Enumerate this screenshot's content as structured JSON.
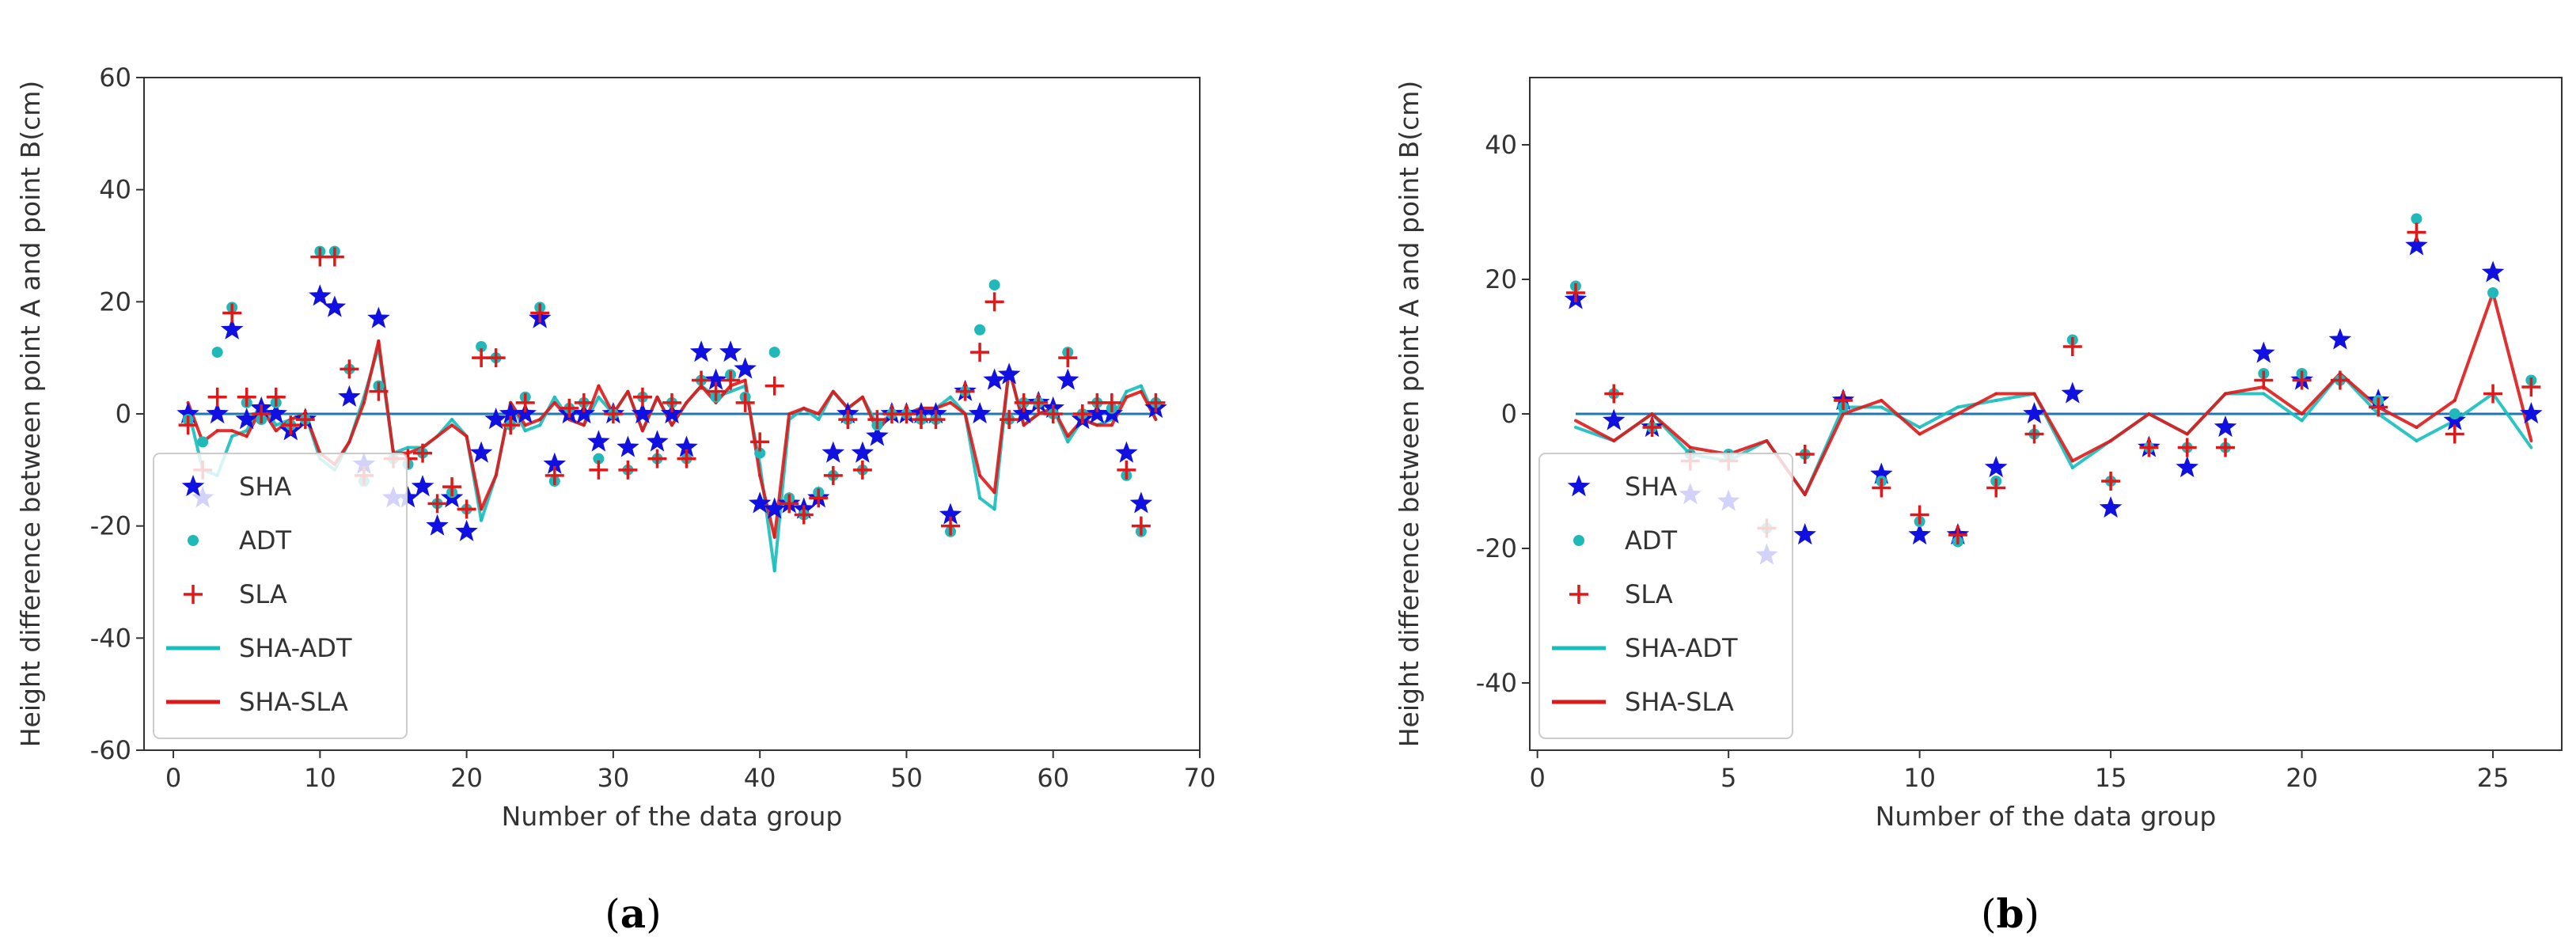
{
  "chart_data": [
    {
      "type": "scatter",
      "panel_label_open": "(",
      "panel_label_letter": "a",
      "panel_label_close": ")",
      "xlabel": "Number of the data group",
      "ylabel": "Height difference between point A and point B(cm)",
      "xlim": [
        -2,
        70
      ],
      "ylim": [
        -60,
        60
      ],
      "xticks": [
        0,
        10,
        20,
        30,
        40,
        50,
        60,
        70
      ],
      "yticks": [
        -60,
        -40,
        -20,
        0,
        20,
        40,
        60
      ],
      "grid": false,
      "legend_position": "lower-left",
      "legend": [
        "SHA",
        "ADT",
        "SLA",
        "SHA-ADT",
        "SHA-SLA"
      ],
      "x": [
        1,
        2,
        3,
        4,
        5,
        6,
        7,
        8,
        9,
        10,
        11,
        12,
        13,
        14,
        15,
        16,
        17,
        18,
        19,
        20,
        21,
        22,
        23,
        24,
        25,
        26,
        27,
        28,
        29,
        30,
        31,
        32,
        33,
        34,
        35,
        36,
        37,
        38,
        39,
        40,
        41,
        42,
        43,
        44,
        45,
        46,
        47,
        48,
        49,
        50,
        51,
        52,
        53,
        54,
        55,
        56,
        57,
        58,
        59,
        60,
        61,
        62,
        63,
        64,
        65,
        66,
        67
      ],
      "series": [
        {
          "name": "SHA",
          "marker": "star",
          "color": "#1010e0",
          "values": [
            0,
            -15,
            0,
            15,
            -1,
            1,
            0,
            -3,
            -1,
            21,
            19,
            3,
            -9,
            17,
            -15,
            -15,
            -13,
            -20,
            -15,
            -21,
            -7,
            -1,
            0,
            0,
            17,
            -9,
            0,
            0,
            -5,
            0,
            -6,
            0,
            -5,
            0,
            -6,
            11,
            6,
            11,
            8,
            -16,
            -17,
            -16,
            -17,
            -15,
            -7,
            0,
            -7,
            -4,
            0,
            0,
            0,
            0,
            -18,
            4,
            0,
            6,
            7,
            0,
            2,
            1,
            6,
            -1,
            0,
            0,
            -7,
            -16,
            1
          ]
        },
        {
          "name": "ADT",
          "marker": "dot",
          "color": "#20b8b8",
          "values": [
            -1,
            -5,
            11,
            19,
            2,
            -1,
            2,
            -2,
            -1,
            29,
            29,
            8,
            -12,
            5,
            -8,
            -9,
            -7,
            -16,
            -14,
            -17,
            12,
            10,
            -2,
            3,
            19,
            -12,
            1,
            2,
            -8,
            0,
            -10,
            3,
            -8,
            2,
            -8,
            6,
            3,
            7,
            3,
            -7,
            11,
            -15,
            -18,
            -14,
            -11,
            -1,
            -10,
            -2,
            0,
            0,
            -1,
            -1,
            -21,
            4,
            15,
            23,
            -1,
            2,
            2,
            0,
            11,
            0,
            2,
            1,
            -11,
            -21,
            2
          ]
        },
        {
          "name": "SLA",
          "marker": "plus",
          "color": "#e01818",
          "values": [
            -2,
            -10,
            3,
            18,
            3,
            0,
            3,
            -2,
            -1,
            28,
            28,
            8,
            -11,
            4,
            -8,
            -8,
            -7,
            -16,
            -13,
            -17,
            10,
            10,
            -2,
            2,
            18,
            -11,
            1,
            2,
            -10,
            0,
            -10,
            3,
            -8,
            2,
            -8,
            6,
            4,
            6,
            2,
            -5,
            5,
            -16,
            -18,
            -15,
            -11,
            -1,
            -10,
            -1,
            0,
            0,
            -1,
            -1,
            -20,
            4,
            11,
            20,
            -1,
            2,
            2,
            0,
            10,
            0,
            2,
            2,
            -10,
            -20,
            2
          ]
        },
        {
          "name": "SHA-ADT",
          "type": "line",
          "color": "#17bebe",
          "values": [
            1,
            -10,
            -11,
            -4,
            -3,
            2,
            -2,
            -1,
            0,
            -8,
            -10,
            -5,
            3,
            12,
            -7,
            -6,
            -6,
            -4,
            -1,
            -4,
            -19,
            -11,
            2,
            -3,
            -2,
            3,
            -1,
            -2,
            3,
            0,
            4,
            -3,
            3,
            -2,
            2,
            5,
            3,
            4,
            5,
            -9,
            -28,
            -1,
            1,
            -1,
            4,
            1,
            3,
            -2,
            0,
            0,
            1,
            1,
            3,
            0,
            -15,
            -17,
            8,
            -2,
            0,
            1,
            -5,
            -1,
            -2,
            -1,
            4,
            5,
            -1
          ]
        },
        {
          "name": "SHA-SLA",
          "type": "line",
          "color": "#dd1a1a",
          "values": [
            2,
            -5,
            -3,
            -3,
            -4,
            1,
            -3,
            -1,
            0,
            -7,
            -9,
            -5,
            2,
            13,
            -7,
            -7,
            -6,
            -4,
            -2,
            -4,
            -17,
            -11,
            2,
            -2,
            -1,
            2,
            -1,
            -2,
            5,
            0,
            4,
            -3,
            3,
            -2,
            2,
            5,
            2,
            5,
            6,
            -11,
            -22,
            0,
            1,
            0,
            4,
            1,
            3,
            -3,
            0,
            0,
            1,
            1,
            2,
            0,
            -11,
            -14,
            8,
            -2,
            0,
            1,
            -4,
            -1,
            -2,
            -2,
            3,
            4,
            -1
          ]
        }
      ]
    },
    {
      "type": "scatter",
      "panel_label_open": "(",
      "panel_label_letter": "b",
      "panel_label_close": ")",
      "xlabel": "Number of the data group",
      "ylabel": "Height difference between point A and point B(cm)",
      "xlim": [
        -0.2,
        26.8
      ],
      "ylim": [
        -50,
        50
      ],
      "xticks": [
        0,
        5,
        10,
        15,
        20,
        25
      ],
      "yticks": [
        -40,
        -20,
        0,
        20,
        40
      ],
      "grid": false,
      "legend_position": "lower-left",
      "legend": [
        "SHA",
        "ADT",
        "SLA",
        "SHA-ADT",
        "SHA-SLA"
      ],
      "x": [
        1,
        2,
        3,
        4,
        5,
        6,
        7,
        8,
        9,
        10,
        11,
        12,
        13,
        14,
        15,
        16,
        17,
        18,
        19,
        20,
        21,
        22,
        23,
        24,
        25,
        26
      ],
      "series": [
        {
          "name": "SHA",
          "marker": "star",
          "color": "#1010e0",
          "values": [
            17,
            -1,
            -2,
            -12,
            -13,
            -21,
            -18,
            2,
            -9,
            -18,
            -18,
            -8,
            0,
            3,
            -14,
            -5,
            -8,
            -2,
            9,
            5,
            11,
            2,
            25,
            -1,
            21,
            0
          ]
        },
        {
          "name": "ADT",
          "marker": "dot",
          "color": "#20b8b8",
          "values": [
            19,
            3,
            -2,
            -6,
            -6,
            -17,
            -6,
            1,
            -10,
            -16,
            -19,
            -10,
            -3,
            11,
            -10,
            -5,
            -5,
            -5,
            6,
            6,
            5,
            2,
            29,
            0,
            18,
            5
          ]
        },
        {
          "name": "SLA",
          "marker": "plus",
          "color": "#e01818",
          "values": [
            18,
            3,
            -2,
            -7,
            -7,
            -17,
            -6,
            2,
            -11,
            -15,
            -18,
            -11,
            -3,
            10,
            -10,
            -5,
            -5,
            -5,
            5,
            5,
            5,
            1,
            27,
            -3,
            3,
            4
          ]
        },
        {
          "name": "SHA-ADT",
          "type": "line",
          "color": "#17bebe",
          "values": [
            -2,
            -4,
            0,
            -6,
            -7,
            -4,
            -12,
            1,
            1,
            -2,
            1,
            2,
            3,
            -8,
            -4,
            0,
            -3,
            3,
            3,
            -1,
            6,
            0,
            -4,
            -1,
            3,
            -5
          ]
        },
        {
          "name": "SHA-SLA",
          "type": "line",
          "color": "#dd1a1a",
          "values": [
            -1,
            -4,
            0,
            -5,
            -6,
            -4,
            -12,
            0,
            2,
            -3,
            0,
            3,
            3,
            -7,
            -4,
            0,
            -3,
            3,
            4,
            0,
            6,
            1,
            -2,
            2,
            18,
            -4
          ]
        }
      ]
    }
  ]
}
